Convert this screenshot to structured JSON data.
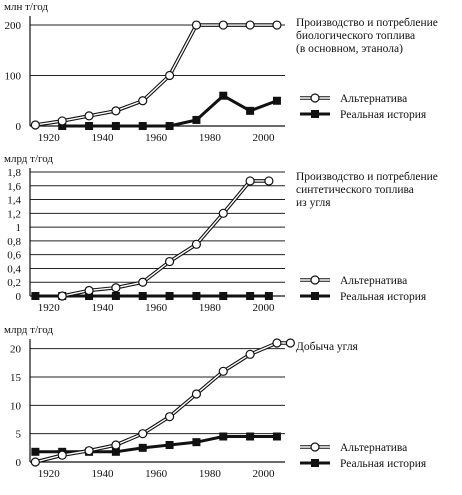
{
  "legend": {
    "alternative": "Альтернатива",
    "real": "Реальная история"
  },
  "chart_data": [
    {
      "type": "line",
      "title": "Производство и потребление биологического топлива (в основном, этанола)",
      "title_lines": [
        "Производство и потребление",
        "биологического топлива",
        "(в основном, этанола)"
      ],
      "ylabel": "млн т/год",
      "xlabel": "",
      "xlim": [
        1913,
        2008
      ],
      "ylim": [
        0,
        210
      ],
      "x_ticks": [
        1920,
        1940,
        1960,
        1980,
        2000
      ],
      "y_ticks": [
        0,
        100,
        200
      ],
      "y_tick_labels": [
        "0",
        "100",
        "200"
      ],
      "grid": "horizontal",
      "legend_position": "bottom-right",
      "series": [
        {
          "name": "Альтернатива",
          "marker": "open-circle",
          "x": [
            1915,
            1925,
            1935,
            1945,
            1955,
            1965,
            1975,
            1985,
            1995,
            2005
          ],
          "y": [
            2,
            10,
            20,
            30,
            50,
            100,
            200,
            200,
            200,
            200
          ]
        },
        {
          "name": "Реальная история",
          "marker": "filled-square",
          "x": [
            1925,
            1935,
            1945,
            1955,
            1965,
            1975,
            1985,
            1995,
            2005
          ],
          "y": [
            0,
            0,
            0,
            0,
            0,
            12,
            60,
            30,
            50
          ]
        }
      ]
    },
    {
      "type": "line",
      "title": "Производство и потребление синтетического топлива из угля",
      "title_lines": [
        "Производство и потребление",
        "синтетического топлива",
        "из угля"
      ],
      "ylabel": "млрд т/год",
      "xlabel": "",
      "xlim": [
        1913,
        2008
      ],
      "ylim": [
        0,
        1.8
      ],
      "x_ticks": [
        1920,
        1940,
        1960,
        1980,
        2000
      ],
      "y_ticks": [
        0,
        0.2,
        0.4,
        0.6,
        0.8,
        1,
        1.2,
        1.4,
        1.6,
        1.8
      ],
      "y_tick_labels": [
        "0",
        "0,2",
        "0,4",
        "0,6",
        "0,8",
        "1",
        "1,2",
        "1,4",
        "1,6",
        "1,8"
      ],
      "grid": "horizontal",
      "legend_position": "bottom-right",
      "series": [
        {
          "name": "Альтернатива",
          "marker": "open-circle",
          "x": [
            1925,
            1935,
            1945,
            1955,
            1965,
            1975,
            1985,
            1995,
            2002
          ],
          "y": [
            0,
            0.08,
            0.12,
            0.2,
            0.5,
            0.75,
            1.2,
            1.67,
            1.67
          ]
        },
        {
          "name": "Реальная история",
          "marker": "filled-square",
          "x": [
            1915,
            1925,
            1935,
            1945,
            1955,
            1965,
            1975,
            1985,
            1995,
            2002
          ],
          "y": [
            0,
            0,
            0,
            0,
            0,
            0,
            0,
            0,
            0,
            0
          ]
        }
      ]
    },
    {
      "type": "line",
      "title": "Добыча угля",
      "title_lines": [
        "Добыча угля"
      ],
      "ylabel": "млрд т/год",
      "xlabel": "",
      "xlim": [
        1913,
        2008
      ],
      "ylim": [
        0,
        21
      ],
      "x_ticks": [
        1920,
        1940,
        1960,
        1980,
        2000
      ],
      "y_ticks": [
        0,
        5,
        10,
        15,
        20
      ],
      "y_tick_labels": [
        "0",
        "5",
        "10",
        "15",
        "20"
      ],
      "grid": "horizontal",
      "legend_position": "bottom-right",
      "series": [
        {
          "name": "Альтернатива",
          "marker": "open-circle",
          "x": [
            1915,
            1925,
            1935,
            1945,
            1955,
            1965,
            1975,
            1985,
            1995,
            2005,
            2010
          ],
          "y": [
            0,
            1.2,
            2,
            3,
            5,
            8,
            12,
            16,
            19,
            21,
            21
          ]
        },
        {
          "name": "Реальная история",
          "marker": "filled-square",
          "x": [
            1915,
            1925,
            1935,
            1945,
            1955,
            1965,
            1975,
            1985,
            1995,
            2005
          ],
          "y": [
            1.8,
            1.8,
            1.8,
            1.8,
            2.5,
            3,
            3.5,
            4.5,
            4.5,
            4.5
          ]
        }
      ]
    }
  ]
}
